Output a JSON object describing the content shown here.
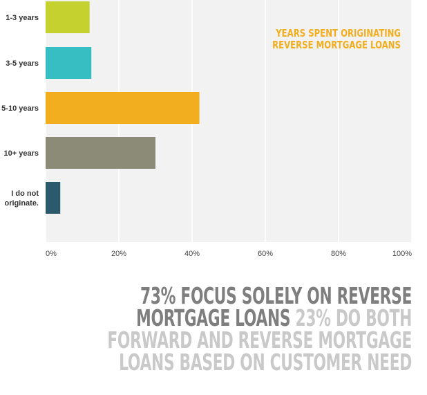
{
  "chart_data": {
    "type": "bar",
    "orientation": "horizontal",
    "title": "Years Spent Originating Reverse Mortgage Loans",
    "categories": [
      "1-3 years",
      "3-5 years",
      "5-10 years",
      "10+ years",
      "I do not originate."
    ],
    "values": [
      12,
      12.5,
      42,
      30,
      4
    ],
    "colors": [
      "#c4d12e",
      "#36bec3",
      "#f3ae1f",
      "#8b8b78",
      "#2a5a6b"
    ],
    "xlim": [
      0,
      100
    ],
    "ticks": [
      "0%",
      "20%",
      "40%",
      "60%",
      "80%",
      "100%"
    ],
    "grid": true
  },
  "summary": {
    "highlight": "73% focus solely on reverse mortgage loans",
    "rest": " 23% do both forward and reverse mortgage loans based on customer need"
  }
}
